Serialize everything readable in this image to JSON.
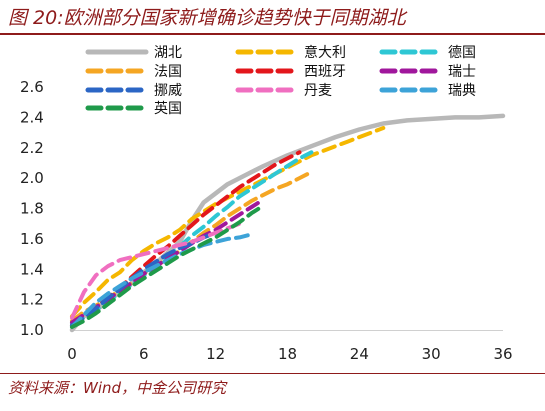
{
  "title": "图 20:欧洲部分国家新增确诊趋势快于同期湖北",
  "source": "资料来源：Wind，中金公司研究",
  "chart_data": {
    "type": "line",
    "title": "图 20:欧洲部分国家新增确诊趋势快于同期湖北",
    "xlabel": "",
    "ylabel": "",
    "xlim": [
      0,
      36
    ],
    "ylim": [
      1.0,
      2.6
    ],
    "xticks": [
      "0",
      "6",
      "12",
      "18",
      "24",
      "30",
      "36"
    ],
    "yticks": [
      "1.0",
      "1.2",
      "1.4",
      "1.6",
      "1.8",
      "2.0",
      "2.2",
      "2.4",
      "2.6"
    ],
    "grid": false,
    "legend_position": "top",
    "series": [
      {
        "name": "湖北",
        "color": "#b8b8b8",
        "style": "solid",
        "points": [
          [
            0,
            1.0
          ],
          [
            1,
            1.09
          ],
          [
            2,
            1.13
          ],
          [
            3,
            1.19
          ],
          [
            4,
            1.25
          ],
          [
            5,
            1.31
          ],
          [
            6,
            1.38
          ],
          [
            7,
            1.44
          ],
          [
            8,
            1.51
          ],
          [
            9,
            1.58
          ],
          [
            10,
            1.72
          ],
          [
            11,
            1.84
          ],
          [
            12,
            1.9
          ],
          [
            13,
            1.96
          ],
          [
            14,
            2.0
          ],
          [
            15,
            2.04
          ],
          [
            16,
            2.08
          ],
          [
            18,
            2.15
          ],
          [
            20,
            2.21
          ],
          [
            22,
            2.27
          ],
          [
            24,
            2.32
          ],
          [
            26,
            2.36
          ],
          [
            28,
            2.38
          ],
          [
            30,
            2.39
          ],
          [
            32,
            2.4
          ],
          [
            34,
            2.4
          ],
          [
            36,
            2.41
          ]
        ]
      },
      {
        "name": "意大利",
        "color": "#f5b700",
        "style": "dashed",
        "points": [
          [
            0,
            1.09
          ],
          [
            1,
            1.18
          ],
          [
            2,
            1.25
          ],
          [
            3,
            1.33
          ],
          [
            4,
            1.38
          ],
          [
            5,
            1.46
          ],
          [
            6,
            1.52
          ],
          [
            7,
            1.57
          ],
          [
            8,
            1.61
          ],
          [
            9,
            1.66
          ],
          [
            10,
            1.73
          ],
          [
            11,
            1.78
          ],
          [
            12,
            1.83
          ],
          [
            13,
            1.87
          ],
          [
            14,
            1.91
          ],
          [
            15,
            1.95
          ],
          [
            16,
            1.99
          ],
          [
            17,
            2.03
          ],
          [
            18,
            2.07
          ],
          [
            19,
            2.11
          ],
          [
            20,
            2.15
          ],
          [
            21,
            2.18
          ],
          [
            22,
            2.21
          ],
          [
            23,
            2.24
          ],
          [
            24,
            2.27
          ],
          [
            25,
            2.3
          ],
          [
            26,
            2.33
          ]
        ]
      },
      {
        "name": "德国",
        "color": "#2ec7d4",
        "style": "dashed",
        "points": [
          [
            0,
            1.04
          ],
          [
            1,
            1.08
          ],
          [
            2,
            1.13
          ],
          [
            3,
            1.19
          ],
          [
            4,
            1.24
          ],
          [
            5,
            1.3
          ],
          [
            6,
            1.36
          ],
          [
            7,
            1.42
          ],
          [
            8,
            1.48
          ],
          [
            9,
            1.55
          ],
          [
            10,
            1.62
          ],
          [
            11,
            1.68
          ],
          [
            12,
            1.75
          ],
          [
            13,
            1.81
          ],
          [
            14,
            1.88
          ],
          [
            15,
            1.93
          ],
          [
            16,
            1.98
          ],
          [
            17,
            2.03
          ],
          [
            18,
            2.08
          ],
          [
            19,
            2.13
          ],
          [
            20,
            2.17
          ]
        ]
      },
      {
        "name": "法国",
        "color": "#f5a623",
        "style": "dashed",
        "points": [
          [
            0,
            1.06
          ],
          [
            1,
            1.12
          ],
          [
            2,
            1.16
          ],
          [
            3,
            1.21
          ],
          [
            4,
            1.26
          ],
          [
            5,
            1.31
          ],
          [
            6,
            1.37
          ],
          [
            7,
            1.42
          ],
          [
            8,
            1.47
          ],
          [
            9,
            1.52
          ],
          [
            10,
            1.58
          ],
          [
            11,
            1.64
          ],
          [
            12,
            1.69
          ],
          [
            13,
            1.75
          ],
          [
            14,
            1.8
          ],
          [
            15,
            1.85
          ],
          [
            16,
            1.89
          ],
          [
            17,
            1.93
          ],
          [
            18,
            1.96
          ],
          [
            19,
            2.0
          ],
          [
            20,
            2.04
          ]
        ]
      },
      {
        "name": "西班牙",
        "color": "#e3161b",
        "style": "dashed",
        "points": [
          [
            0,
            1.03
          ],
          [
            1,
            1.08
          ],
          [
            2,
            1.15
          ],
          [
            3,
            1.21
          ],
          [
            4,
            1.28
          ],
          [
            5,
            1.35
          ],
          [
            6,
            1.42
          ],
          [
            7,
            1.49
          ],
          [
            8,
            1.55
          ],
          [
            9,
            1.62
          ],
          [
            10,
            1.69
          ],
          [
            11,
            1.76
          ],
          [
            12,
            1.82
          ],
          [
            13,
            1.88
          ],
          [
            14,
            1.94
          ],
          [
            15,
            1.99
          ],
          [
            16,
            2.04
          ],
          [
            17,
            2.09
          ],
          [
            18,
            2.13
          ],
          [
            19,
            2.17
          ]
        ]
      },
      {
        "name": "瑞士",
        "color": "#a0179c",
        "style": "dashed",
        "points": [
          [
            0,
            1.05
          ],
          [
            1,
            1.1
          ],
          [
            2,
            1.15
          ],
          [
            3,
            1.2
          ],
          [
            4,
            1.26
          ],
          [
            5,
            1.31
          ],
          [
            6,
            1.37
          ],
          [
            7,
            1.42
          ],
          [
            8,
            1.47
          ],
          [
            9,
            1.52
          ],
          [
            10,
            1.57
          ],
          [
            11,
            1.62
          ],
          [
            12,
            1.66
          ],
          [
            13,
            1.71
          ],
          [
            14,
            1.76
          ],
          [
            15,
            1.81
          ],
          [
            16,
            1.86
          ]
        ]
      },
      {
        "name": "挪威",
        "color": "#2b66c5",
        "style": "dashed",
        "points": [
          [
            0,
            1.03
          ],
          [
            1,
            1.08
          ],
          [
            2,
            1.14
          ],
          [
            3,
            1.21
          ],
          [
            4,
            1.27
          ],
          [
            5,
            1.34
          ],
          [
            6,
            1.4
          ],
          [
            7,
            1.45
          ],
          [
            8,
            1.5
          ],
          [
            9,
            1.54
          ],
          [
            10,
            1.57
          ],
          [
            11,
            1.61
          ],
          [
            12,
            1.64
          ]
        ]
      },
      {
        "name": "丹麦",
        "color": "#f06fc0",
        "style": "dashed",
        "points": [
          [
            0,
            1.08
          ],
          [
            1,
            1.25
          ],
          [
            2,
            1.36
          ],
          [
            3,
            1.42
          ],
          [
            4,
            1.46
          ],
          [
            5,
            1.48
          ],
          [
            6,
            1.5
          ],
          [
            7,
            1.52
          ],
          [
            8,
            1.54
          ],
          [
            9,
            1.56
          ],
          [
            10,
            1.58
          ],
          [
            11,
            1.61
          ],
          [
            12,
            1.64
          ],
          [
            13,
            1.67
          ],
          [
            14,
            1.7
          ]
        ]
      },
      {
        "name": "瑞典",
        "color": "#3da3d8",
        "style": "dashed",
        "points": [
          [
            0,
            1.02
          ],
          [
            1,
            1.1
          ],
          [
            2,
            1.18
          ],
          [
            3,
            1.24
          ],
          [
            4,
            1.29
          ],
          [
            5,
            1.34
          ],
          [
            6,
            1.38
          ],
          [
            7,
            1.42
          ],
          [
            8,
            1.46
          ],
          [
            9,
            1.5
          ],
          [
            10,
            1.53
          ],
          [
            11,
            1.56
          ],
          [
            12,
            1.58
          ],
          [
            13,
            1.6
          ],
          [
            14,
            1.61
          ],
          [
            15,
            1.63
          ]
        ]
      },
      {
        "name": "英国",
        "color": "#1f9a4a",
        "style": "dashed",
        "points": [
          [
            0,
            1.02
          ],
          [
            1,
            1.06
          ],
          [
            2,
            1.11
          ],
          [
            3,
            1.17
          ],
          [
            4,
            1.23
          ],
          [
            5,
            1.29
          ],
          [
            6,
            1.34
          ],
          [
            7,
            1.39
          ],
          [
            8,
            1.44
          ],
          [
            9,
            1.49
          ],
          [
            10,
            1.53
          ],
          [
            11,
            1.57
          ],
          [
            12,
            1.61
          ],
          [
            13,
            1.66
          ],
          [
            14,
            1.71
          ],
          [
            15,
            1.77
          ],
          [
            16,
            1.82
          ]
        ]
      }
    ]
  }
}
